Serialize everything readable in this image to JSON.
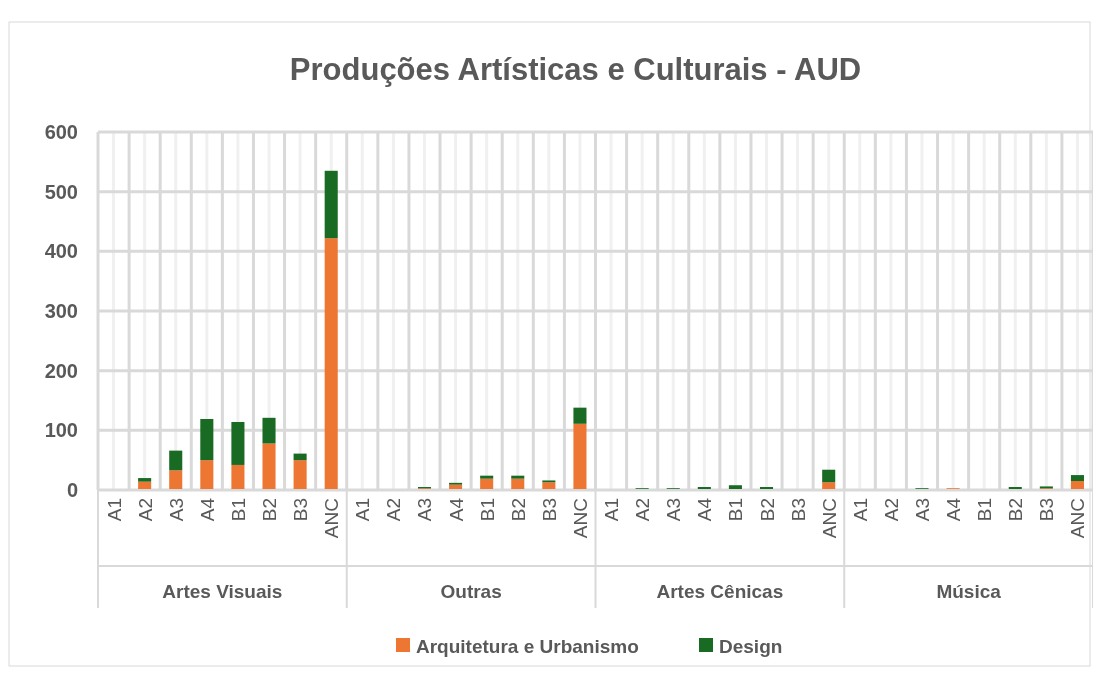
{
  "chart_data": {
    "type": "bar",
    "title": "Produções Artísticas e Culturais - AUD",
    "stacked": true,
    "categories": [
      "A1",
      "A2",
      "A3",
      "A4",
      "B1",
      "B2",
      "B3",
      "ANC",
      "A1",
      "A2",
      "A3",
      "A4",
      "B1",
      "B2",
      "B3",
      "ANC",
      "A1",
      "A2",
      "A3",
      "A4",
      "B1",
      "B2",
      "B3",
      "ANC",
      "A1",
      "A2",
      "A3",
      "A4",
      "B1",
      "B2",
      "B3",
      "ANC"
    ],
    "series": [
      {
        "name": "Arquitetura e Urbanismo",
        "color": "#ed7633",
        "values": [
          0,
          14,
          33,
          50,
          42,
          78,
          50,
          422,
          0,
          0,
          3,
          9,
          19,
          19,
          13,
          111,
          0,
          0,
          0,
          0,
          0,
          0,
          0,
          13,
          0,
          0,
          0,
          3,
          0,
          0,
          3,
          15
        ]
      },
      {
        "name": "Design",
        "color": "#196b24",
        "values": [
          0,
          6,
          33,
          69,
          72,
          43,
          11,
          113,
          0,
          0,
          2,
          3,
          5,
          5,
          3,
          27,
          0,
          3,
          3,
          5,
          8,
          5,
          0,
          21,
          0,
          0,
          3,
          0,
          0,
          5,
          3,
          10
        ]
      }
    ],
    "annotations": [
      "Artes Visuais",
      "Outras",
      "Artes Cênicas",
      "Música"
    ],
    "ylim": [
      0,
      600
    ],
    "yticks": [
      0,
      100,
      200,
      300,
      400,
      500,
      600
    ],
    "grid": true,
    "legend": "bottom"
  }
}
